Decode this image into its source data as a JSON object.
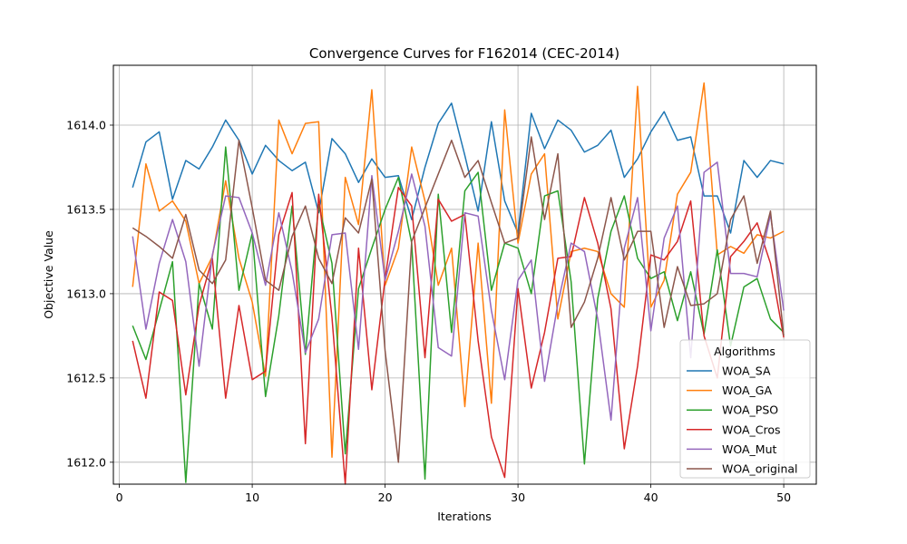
{
  "chart_data": {
    "type": "line",
    "title": "Convergence Curves for F162014 (CEC-2014)",
    "xlabel": "Iterations",
    "ylabel": "Objective Value",
    "xlim": [
      -0.45,
      52.45
    ],
    "ylim": [
      1611.87,
      1614.355
    ],
    "xticks": [
      0,
      10,
      20,
      30,
      40,
      50
    ],
    "yticks": [
      1612.0,
      1612.5,
      1613.0,
      1613.5,
      1614.0
    ],
    "ytick_labels": [
      "1612.0",
      "1612.5",
      "1613.0",
      "1613.5",
      "1614.0"
    ],
    "grid": true,
    "legend_title": "Algorithms",
    "legend_position": "lower-right",
    "x": [
      1,
      2,
      3,
      4,
      5,
      6,
      7,
      8,
      9,
      10,
      11,
      12,
      13,
      14,
      15,
      16,
      17,
      18,
      19,
      20,
      21,
      22,
      23,
      24,
      25,
      26,
      27,
      28,
      29,
      30,
      31,
      32,
      33,
      34,
      35,
      36,
      37,
      38,
      39,
      40,
      41,
      42,
      43,
      44,
      45,
      46,
      47,
      48,
      49,
      50
    ],
    "series": [
      {
        "name": "WOA_SA",
        "color": "#1f77b4",
        "values": [
          1613.63,
          1613.9,
          1613.96,
          1613.56,
          1613.79,
          1613.74,
          1613.87,
          1614.03,
          1613.91,
          1613.71,
          1613.88,
          1613.79,
          1613.73,
          1613.78,
          1613.48,
          1613.92,
          1613.83,
          1613.66,
          1613.8,
          1613.69,
          1613.7,
          1613.44,
          1613.75,
          1614.01,
          1614.13,
          1613.82,
          1613.49,
          1614.02,
          1613.55,
          1613.36,
          1614.07,
          1613.86,
          1614.03,
          1613.97,
          1613.84,
          1613.88,
          1613.97,
          1613.69,
          1613.8,
          1613.96,
          1614.08,
          1613.91,
          1613.93,
          1613.58,
          1613.58,
          1613.36,
          1613.79,
          1613.69,
          1613.79,
          1613.77
        ]
      },
      {
        "name": "WOA_GA",
        "color": "#ff7f0e",
        "values": [
          1613.04,
          1613.77,
          1613.49,
          1613.55,
          1613.43,
          1613.06,
          1613.22,
          1613.67,
          1613.21,
          1612.95,
          1612.51,
          1614.03,
          1613.83,
          1614.01,
          1614.02,
          1612.03,
          1613.69,
          1613.41,
          1614.21,
          1613.05,
          1613.27,
          1613.87,
          1613.55,
          1613.05,
          1613.27,
          1612.33,
          1613.3,
          1612.35,
          1614.09,
          1613.3,
          1613.71,
          1613.83,
          1612.85,
          1613.25,
          1613.27,
          1613.25,
          1613.0,
          1612.92,
          1614.23,
          1612.92,
          1613.08,
          1613.59,
          1613.72,
          1614.25,
          1613.23,
          1613.28,
          1613.24,
          1613.35,
          1613.33,
          1613.37
        ]
      },
      {
        "name": "WOA_PSO",
        "color": "#2ca02c",
        "values": [
          1612.81,
          1612.61,
          1612.9,
          1613.19,
          1611.88,
          1613.06,
          1612.79,
          1613.87,
          1613.02,
          1613.36,
          1612.39,
          1612.87,
          1613.52,
          1612.64,
          1613.53,
          1613.18,
          1612.05,
          1613.03,
          1613.27,
          1613.5,
          1613.69,
          1613.3,
          1611.9,
          1613.59,
          1612.77,
          1613.61,
          1613.72,
          1613.02,
          1613.3,
          1613.27,
          1613.0,
          1613.58,
          1613.61,
          1613.07,
          1611.99,
          1612.97,
          1613.37,
          1613.58,
          1613.21,
          1613.09,
          1613.13,
          1612.84,
          1613.13,
          1612.76,
          1613.26,
          1612.69,
          1613.04,
          1613.09,
          1612.85,
          1612.77
        ]
      },
      {
        "name": "WOA_Cros",
        "color": "#d62728",
        "values": [
          1612.72,
          1612.38,
          1613.01,
          1612.96,
          1612.4,
          1612.93,
          1613.21,
          1612.38,
          1612.93,
          1612.49,
          1612.54,
          1613.35,
          1613.6,
          1612.11,
          1613.59,
          1612.86,
          1611.87,
          1613.27,
          1612.43,
          1613.09,
          1613.63,
          1613.52,
          1612.62,
          1613.56,
          1613.43,
          1613.47,
          1612.72,
          1612.15,
          1611.91,
          1613.03,
          1612.44,
          1612.77,
          1613.21,
          1613.22,
          1613.57,
          1613.3,
          1612.91,
          1612.08,
          1612.57,
          1613.23,
          1613.2,
          1613.31,
          1613.55,
          1612.75,
          1612.5,
          1613.22,
          1613.31,
          1613.42,
          1613.18,
          1612.74
        ]
      },
      {
        "name": "WOA_Mut",
        "color": "#9467bd",
        "values": [
          1613.34,
          1612.79,
          1613.18,
          1613.44,
          1613.19,
          1612.57,
          1613.23,
          1613.58,
          1613.57,
          1613.36,
          1613.05,
          1613.48,
          1613.13,
          1612.65,
          1612.85,
          1613.35,
          1613.36,
          1612.67,
          1613.7,
          1613.08,
          1613.37,
          1613.71,
          1613.4,
          1612.68,
          1612.63,
          1613.48,
          1613.46,
          1612.9,
          1612.49,
          1613.08,
          1613.2,
          1612.48,
          1612.94,
          1613.3,
          1613.25,
          1612.85,
          1612.25,
          1613.27,
          1613.57,
          1612.78,
          1613.33,
          1613.52,
          1612.62,
          1613.72,
          1613.78,
          1613.12,
          1613.12,
          1613.1,
          1613.47,
          1612.9
        ]
      },
      {
        "name": "WOA_original",
        "color": "#8c564b",
        "values": [
          1613.39,
          1613.34,
          1613.28,
          1613.21,
          1613.47,
          1613.14,
          1613.06,
          1613.2,
          1613.91,
          1613.51,
          1613.08,
          1613.02,
          1613.34,
          1613.52,
          1613.21,
          1613.06,
          1613.45,
          1613.36,
          1613.68,
          1612.66,
          1612.0,
          1613.31,
          1613.51,
          1613.71,
          1613.91,
          1613.69,
          1613.79,
          1613.54,
          1613.3,
          1613.33,
          1613.93,
          1613.44,
          1613.83,
          1612.8,
          1612.95,
          1613.21,
          1613.57,
          1613.2,
          1613.37,
          1613.37,
          1612.8,
          1613.16,
          1612.93,
          1612.94,
          1613.0,
          1613.44,
          1613.58,
          1613.18,
          1613.49,
          1612.75
        ]
      }
    ]
  }
}
